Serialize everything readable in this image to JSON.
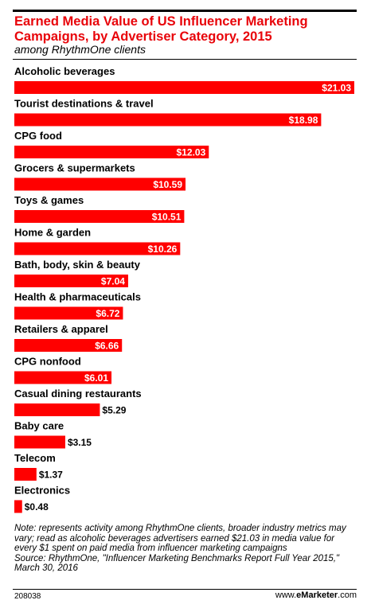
{
  "header": {
    "title": "Earned Media Value of US Influencer Marketing Campaigns, by Advertiser Category, 2015",
    "subtitle": "among RhythmOne clients"
  },
  "chart_data": {
    "type": "bar",
    "orientation": "horizontal",
    "title": "Earned Media Value of US Influencer Marketing Campaigns, by Advertiser Category, 2015",
    "subtitle": "among RhythmOne clients",
    "categories": [
      "Alcoholic beverages",
      "Tourist destinations & travel",
      "CPG food",
      "Grocers & supermarkets",
      "Toys & games",
      "Home & garden",
      "Bath, body, skin & beauty",
      "Health & pharmaceuticals",
      "Retailers & apparel",
      "CPG nonfood",
      "Casual dining restaurants",
      "Baby care",
      "Telecom",
      "Electronics"
    ],
    "values": [
      21.03,
      18.98,
      12.03,
      10.59,
      10.51,
      10.26,
      7.04,
      6.72,
      6.66,
      6.01,
      5.29,
      3.15,
      1.37,
      0.48
    ],
    "value_labels": [
      "$21.03",
      "$18.98",
      "$12.03",
      "$10.59",
      "$10.51",
      "$10.26",
      "$7.04",
      "$6.72",
      "$6.66",
      "$6.01",
      "$5.29",
      "$3.15",
      "$1.37",
      "$0.48"
    ],
    "xlabel": "",
    "ylabel": "",
    "xlim": [
      0,
      21.03
    ],
    "grid": false,
    "legend": "none",
    "bar_color": "#ff0000",
    "label_inside_color": "#ffffff",
    "label_outside_color": "#000000"
  },
  "notes": {
    "note": "Note: represents activity among RhythmOne clients, broader industry metrics may vary; read as alcoholic beverages advertisers earned $21.03 in media value for every $1 spent on paid media from influencer marketing campaigns",
    "source": "Source: RhythmOne, \"Influencer Marketing Benchmarks Report Full Year 2015,\" March 30, 2016"
  },
  "footer": {
    "chart_id": "208038",
    "brand_prefix": "www.",
    "brand_bold": "eMarketer",
    "brand_suffix": ".com"
  },
  "colors": {
    "title": "#e8040a",
    "bar": "#ff0000"
  }
}
